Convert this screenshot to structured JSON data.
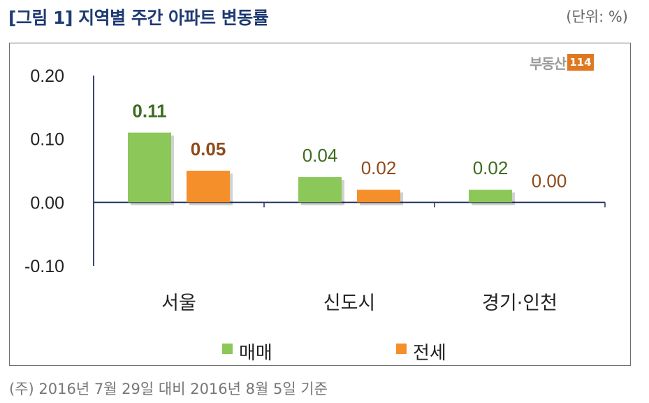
{
  "title": "[그림 1] 지역별 주간 아파트 변동률",
  "unit": "(단위: %)",
  "logo": {
    "text": "부동산",
    "number": "114"
  },
  "footnote": "(주) 2016년 7월 29일 대비 2016년 8월 5일 기준",
  "colors": {
    "sale": "#8cc75a",
    "jeonse": "#f58f2a",
    "axis": "#22315e",
    "sale_label": "#3d6b1f",
    "jeonse_label": "#8f4a1a"
  },
  "chart_data": {
    "type": "bar",
    "categories": [
      "서울",
      "신도시",
      "경기·인천"
    ],
    "series": [
      {
        "name": "매매",
        "values": [
          0.11,
          0.04,
          0.02
        ]
      },
      {
        "name": "전세",
        "values": [
          0.05,
          0.02,
          0.0
        ]
      }
    ],
    "value_labels": [
      [
        "0.11",
        "0.04",
        "0.02"
      ],
      [
        "0.05",
        "0.02",
        "0.00"
      ]
    ],
    "yticks": [
      "0.20",
      "0.10",
      "0.00",
      "-0.10"
    ],
    "ylim": [
      -0.1,
      0.2
    ],
    "legend": "bottom"
  }
}
